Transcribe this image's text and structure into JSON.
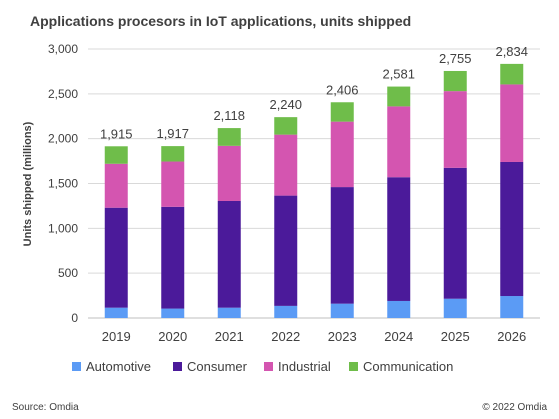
{
  "chart_data": {
    "type": "bar",
    "stacked": true,
    "title": "Applications procesors in IoT applications, units shipped",
    "xlabel": "",
    "ylabel": "Units shipped (millions)",
    "ylim": [
      0,
      3000
    ],
    "yticks": [
      0,
      500,
      1000,
      1500,
      2000,
      2500,
      3000
    ],
    "ytick_labels": [
      "0",
      "500",
      "1,000",
      "1,500",
      "2,000",
      "2,500",
      "3,000"
    ],
    "grid": true,
    "legend_position": "bottom",
    "categories": [
      "2019",
      "2020",
      "2021",
      "2022",
      "2023",
      "2024",
      "2025",
      "2026"
    ],
    "totals": [
      1915,
      1917,
      2118,
      2240,
      2406,
      2581,
      2755,
      2834
    ],
    "total_labels": [
      "1,915",
      "1,917",
      "2,118",
      "2,240",
      "2,406",
      "2,581",
      "2,755",
      "2,834"
    ],
    "series": [
      {
        "name": "Automotive",
        "color": "#5b9bf5",
        "values": [
          115,
          105,
          115,
          135,
          160,
          190,
          215,
          245
        ]
      },
      {
        "name": "Consumer",
        "color": "#4b1a9a",
        "values": [
          1115,
          1135,
          1190,
          1230,
          1300,
          1380,
          1460,
          1495
        ]
      },
      {
        "name": "Industrial",
        "color": "#d455b0",
        "values": [
          490,
          505,
          615,
          680,
          730,
          790,
          855,
          865
        ]
      },
      {
        "name": "Communication",
        "color": "#6fbd4a",
        "values": [
          195,
          172,
          198,
          195,
          216,
          221,
          225,
          229
        ]
      }
    ]
  },
  "footer": {
    "source": "Source: Omdia",
    "copyright": "© 2022 Omdia"
  }
}
